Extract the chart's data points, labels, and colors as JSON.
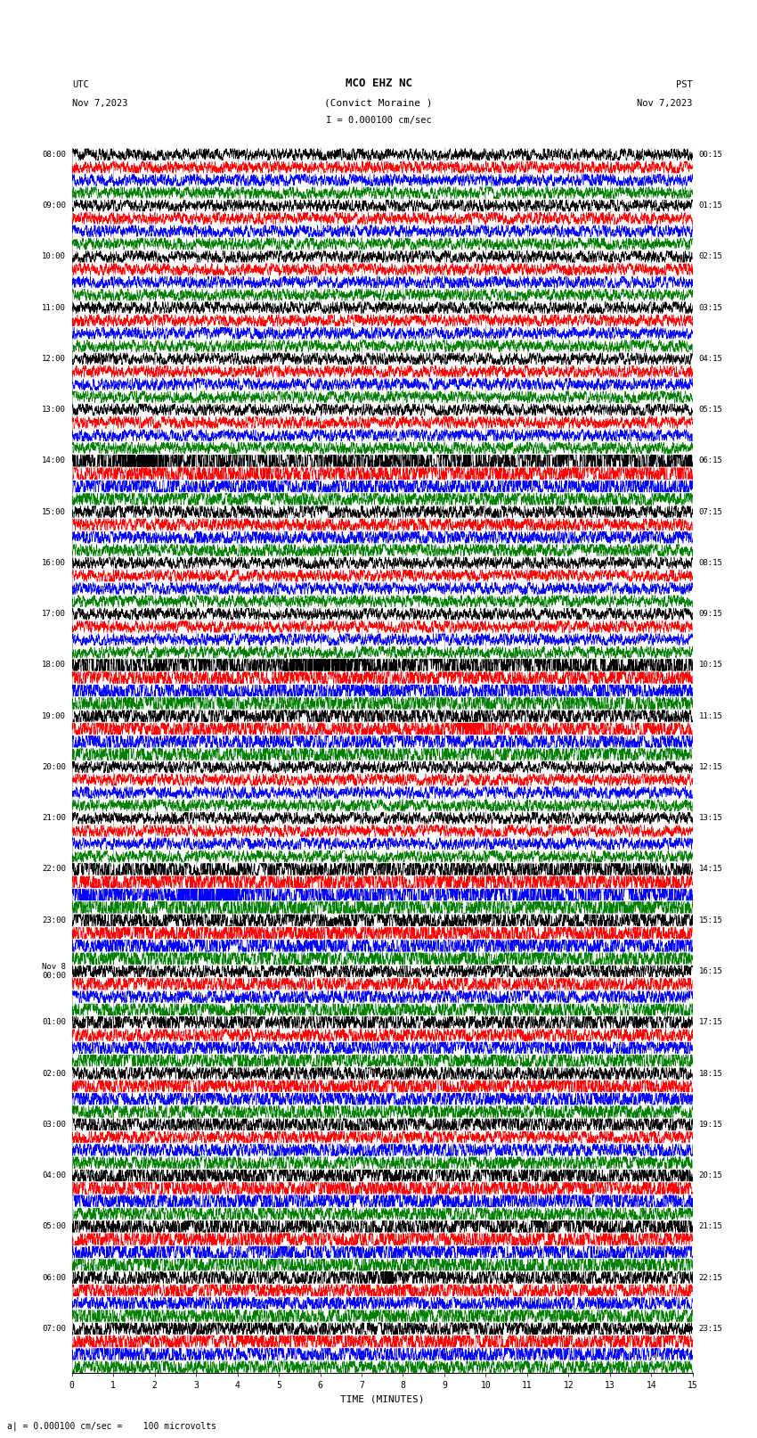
{
  "title_line1": "MCO EHZ NC",
  "title_line2": "(Convict Moraine )",
  "scale_label": "I = 0.000100 cm/sec",
  "utc_label": "UTC\nNov 7,2023",
  "pst_label": "PST\nNov 7,2023",
  "bottom_label": "a| = 0.000100 cm/sec =    100 microvolts",
  "xlabel": "TIME (MINUTES)",
  "trace_colors_cycle": [
    "black",
    "red",
    "blue",
    "green"
  ],
  "num_traces": 96,
  "minutes": 15,
  "figsize": [
    8.5,
    16.13
  ],
  "dpi": 100,
  "bg_color": "white",
  "left_times_utc": [
    "08:00",
    "",
    "",
    "",
    "09:00",
    "",
    "",
    "",
    "10:00",
    "",
    "",
    "",
    "11:00",
    "",
    "",
    "",
    "12:00",
    "",
    "",
    "",
    "13:00",
    "",
    "",
    "",
    "14:00",
    "",
    "",
    "",
    "15:00",
    "",
    "",
    "",
    "16:00",
    "",
    "",
    "",
    "17:00",
    "",
    "",
    "",
    "18:00",
    "",
    "",
    "",
    "19:00",
    "",
    "",
    "",
    "20:00",
    "",
    "",
    "",
    "21:00",
    "",
    "",
    "",
    "22:00",
    "",
    "",
    "",
    "23:00",
    "",
    "",
    "",
    "Nov 8\n00:00",
    "",
    "",
    "",
    "01:00",
    "",
    "",
    "",
    "02:00",
    "",
    "",
    "",
    "03:00",
    "",
    "",
    "",
    "04:00",
    "",
    "",
    "",
    "05:00",
    "",
    "",
    "",
    "06:00",
    "",
    "",
    "",
    "07:00",
    "",
    "",
    ""
  ],
  "right_times_pst": [
    "00:15",
    "",
    "",
    "",
    "01:15",
    "",
    "",
    "",
    "02:15",
    "",
    "",
    "",
    "03:15",
    "",
    "",
    "",
    "04:15",
    "",
    "",
    "",
    "05:15",
    "",
    "",
    "",
    "06:15",
    "",
    "",
    "",
    "07:15",
    "",
    "",
    "",
    "08:15",
    "",
    "",
    "",
    "09:15",
    "",
    "",
    "",
    "10:15",
    "",
    "",
    "",
    "11:15",
    "",
    "",
    "",
    "12:15",
    "",
    "",
    "",
    "13:15",
    "",
    "",
    "",
    "14:15",
    "",
    "",
    "",
    "15:15",
    "",
    "",
    "",
    "16:15",
    "",
    "",
    "",
    "17:15",
    "",
    "",
    "",
    "18:15",
    "",
    "",
    "",
    "19:15",
    "",
    "",
    "",
    "20:15",
    "",
    "",
    "",
    "21:15",
    "",
    "",
    "",
    "22:15",
    "",
    "",
    "",
    "23:15",
    "",
    "",
    ""
  ]
}
